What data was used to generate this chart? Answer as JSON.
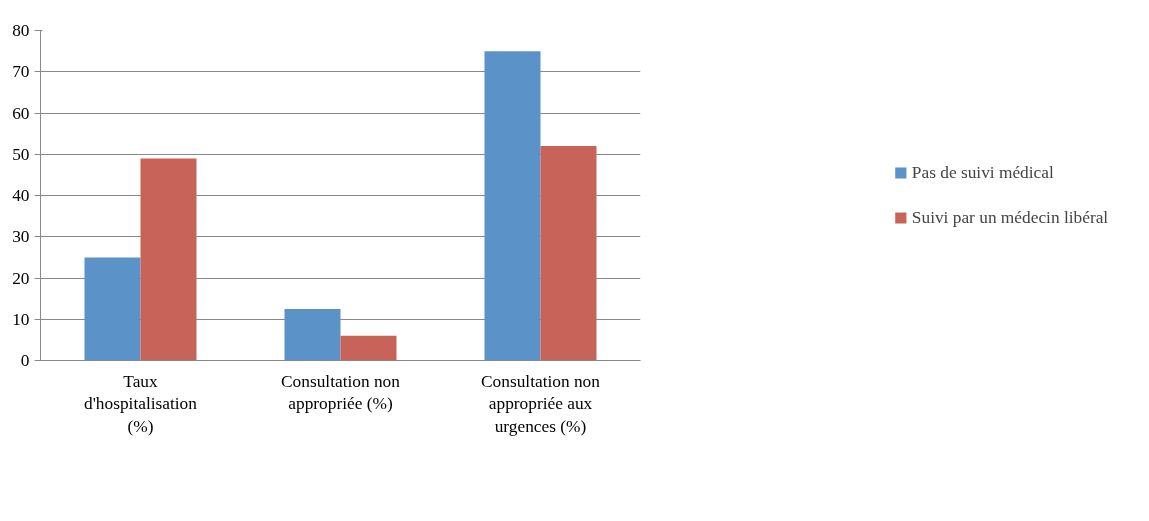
{
  "chart_data": {
    "type": "bar",
    "categories": [
      "Taux d'hospitalisation (%)",
      "Consultation non appropriée (%)",
      "Consultation non appropriée aux urgences (%)"
    ],
    "series": [
      {
        "name": "Pas de suivi médical",
        "color": "#5b93c8",
        "values": [
          25,
          12.5,
          75
        ]
      },
      {
        "name": "Suivi par un médecin libéral",
        "color": "#c8635a",
        "values": [
          49,
          6,
          52
        ]
      }
    ],
    "ylim": [
      0,
      80
    ],
    "yticks": [
      0,
      10,
      20,
      30,
      40,
      50,
      60,
      70,
      80
    ],
    "grid": "y",
    "legend": "right"
  }
}
